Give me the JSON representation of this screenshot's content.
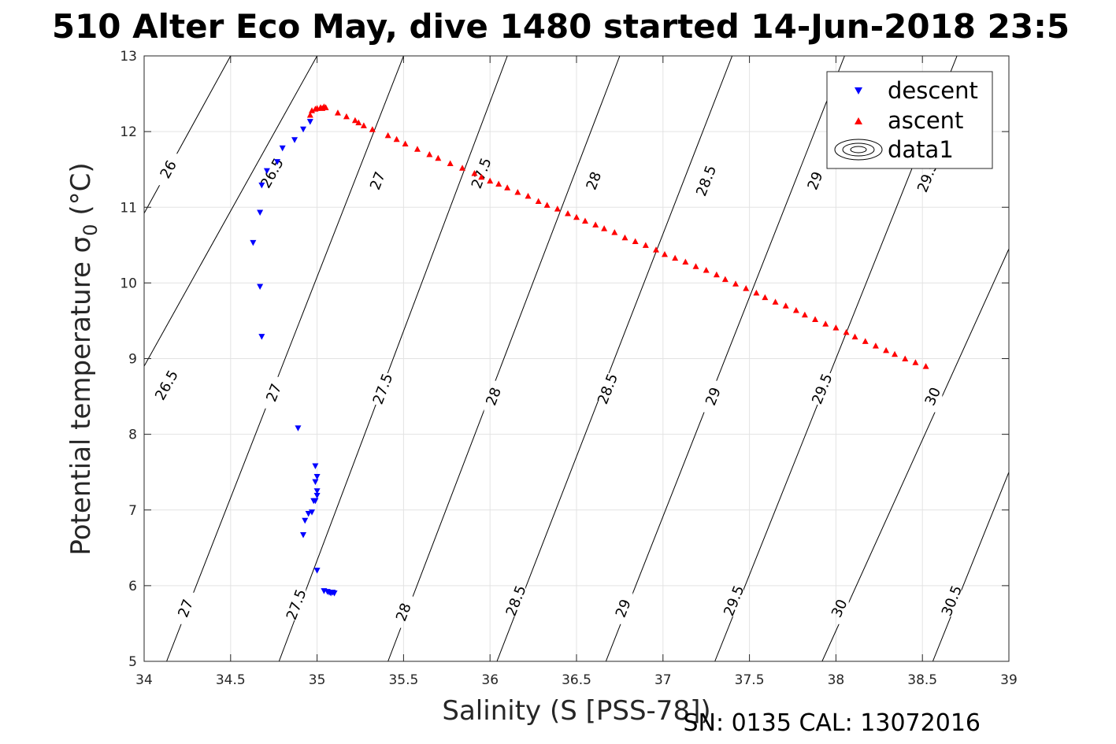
{
  "chart_data": {
    "type": "scatter",
    "title": "510 Alter Eco May, dive 1480 started 14-Jun-2018 23:5",
    "xlabel": "Salinity (S [PSS-78])",
    "ylabel": "Potential temperature σ",
    "ylabel_sub": "0",
    "ylabel_unit": " (°C)",
    "caption": "SN: 0135  CAL: 13072016",
    "xlim": [
      34,
      39
    ],
    "ylim": [
      5,
      13
    ],
    "xticks": [
      34,
      34.5,
      35,
      35.5,
      36,
      36.5,
      37,
      37.5,
      38,
      38.5,
      39
    ],
    "yticks": [
      5,
      6,
      7,
      8,
      9,
      10,
      11,
      12,
      13
    ],
    "xtick_labels": [
      "34",
      "34.5",
      "35",
      "35.5",
      "36",
      "36.5",
      "37",
      "37.5",
      "38",
      "38.5",
      "39"
    ],
    "ytick_labels": [
      "5",
      "6",
      "7",
      "8",
      "9",
      "10",
      "11",
      "12",
      "13"
    ],
    "grid": true,
    "legend_position": "top-right",
    "series": [
      {
        "name": "descent",
        "marker": "triangle-down",
        "color": "#0000ff",
        "points": [
          [
            34.63,
            10.53
          ],
          [
            34.67,
            9.95
          ],
          [
            34.68,
            9.29
          ],
          [
            34.67,
            10.93
          ],
          [
            34.68,
            11.29
          ],
          [
            34.71,
            11.48
          ],
          [
            34.77,
            11.6
          ],
          [
            34.8,
            11.78
          ],
          [
            34.87,
            11.89
          ],
          [
            34.92,
            12.03
          ],
          [
            34.96,
            12.13
          ],
          [
            34.89,
            8.08
          ],
          [
            34.99,
            7.58
          ],
          [
            35.0,
            7.44
          ],
          [
            34.99,
            7.37
          ],
          [
            35.0,
            7.25
          ],
          [
            35.0,
            7.19
          ],
          [
            34.99,
            7.12
          ],
          [
            34.98,
            7.12
          ],
          [
            34.97,
            6.97
          ],
          [
            34.95,
            6.95
          ],
          [
            34.93,
            6.86
          ],
          [
            34.92,
            6.67
          ],
          [
            35.0,
            6.2
          ],
          [
            35.04,
            5.93
          ],
          [
            35.06,
            5.92
          ],
          [
            35.07,
            5.91
          ],
          [
            35.08,
            5.9
          ],
          [
            35.09,
            5.91
          ],
          [
            35.1,
            5.9
          ]
        ]
      },
      {
        "name": "ascent",
        "marker": "triangle-up",
        "color": "#ff0000",
        "points": [
          [
            34.96,
            12.22
          ],
          [
            34.97,
            12.28
          ],
          [
            34.99,
            12.3
          ],
          [
            35.0,
            12.31
          ],
          [
            35.02,
            12.32
          ],
          [
            35.03,
            12.31
          ],
          [
            35.04,
            12.33
          ],
          [
            35.05,
            12.32
          ],
          [
            35.12,
            12.25
          ],
          [
            35.17,
            12.2
          ],
          [
            35.22,
            12.15
          ],
          [
            35.24,
            12.12
          ],
          [
            35.27,
            12.08
          ],
          [
            35.32,
            12.03
          ],
          [
            35.41,
            11.95
          ],
          [
            35.46,
            11.9
          ],
          [
            35.51,
            11.84
          ],
          [
            35.58,
            11.77
          ],
          [
            35.65,
            11.7
          ],
          [
            35.7,
            11.65
          ],
          [
            35.77,
            11.58
          ],
          [
            35.84,
            11.52
          ],
          [
            35.91,
            11.45
          ],
          [
            35.95,
            11.4
          ],
          [
            36.0,
            11.35
          ],
          [
            36.05,
            11.31
          ],
          [
            36.1,
            11.26
          ],
          [
            36.16,
            11.2
          ],
          [
            36.22,
            11.15
          ],
          [
            36.28,
            11.08
          ],
          [
            36.33,
            11.03
          ],
          [
            36.39,
            10.98
          ],
          [
            36.45,
            10.92
          ],
          [
            36.5,
            10.87
          ],
          [
            36.55,
            10.82
          ],
          [
            36.61,
            10.77
          ],
          [
            36.66,
            10.72
          ],
          [
            36.72,
            10.67
          ],
          [
            36.78,
            10.6
          ],
          [
            36.84,
            10.55
          ],
          [
            36.9,
            10.5
          ],
          [
            36.96,
            10.44
          ],
          [
            37.01,
            10.38
          ],
          [
            37.07,
            10.33
          ],
          [
            37.13,
            10.28
          ],
          [
            37.19,
            10.22
          ],
          [
            37.25,
            10.17
          ],
          [
            37.31,
            10.11
          ],
          [
            37.36,
            10.05
          ],
          [
            37.42,
            9.99
          ],
          [
            37.48,
            9.93
          ],
          [
            37.54,
            9.87
          ],
          [
            37.59,
            9.81
          ],
          [
            37.65,
            9.75
          ],
          [
            37.71,
            9.7
          ],
          [
            37.77,
            9.64
          ],
          [
            37.82,
            9.58
          ],
          [
            37.88,
            9.52
          ],
          [
            37.94,
            9.46
          ],
          [
            38.0,
            9.41
          ],
          [
            38.06,
            9.35
          ],
          [
            38.11,
            9.29
          ],
          [
            38.17,
            9.23
          ],
          [
            38.23,
            9.17
          ],
          [
            38.29,
            9.11
          ],
          [
            38.34,
            9.06
          ],
          [
            38.4,
            9.0
          ],
          [
            38.46,
            8.95
          ],
          [
            38.52,
            8.9
          ]
        ]
      }
    ],
    "contours": {
      "name": "data1",
      "levels": [
        {
          "level": "26",
          "line": [
            [
              34.0,
              10.92
            ],
            [
              34.5,
              13.0
            ]
          ],
          "labels": [
            [
              34.14,
              11.5
            ]
          ]
        },
        {
          "level": "26.5",
          "line": [
            [
              34.0,
              8.9
            ],
            [
              35.0,
              13.0
            ]
          ],
          "labels": [
            [
              34.13,
              8.65
            ],
            [
              34.74,
              11.45
            ]
          ]
        },
        {
          "level": "27",
          "line": [
            [
              34.13,
              5.0
            ],
            [
              35.5,
              13.0
            ]
          ],
          "labels": [
            [
              34.24,
              5.7
            ],
            [
              34.75,
              8.55
            ],
            [
              35.35,
              11.35
            ]
          ]
        },
        {
          "level": "27.5",
          "line": [
            [
              34.78,
              5.0
            ],
            [
              36.1,
              13.0
            ]
          ],
          "labels": [
            [
              34.88,
              5.75
            ],
            [
              35.38,
              8.6
            ],
            [
              35.95,
              11.45
            ]
          ]
        },
        {
          "level": "28",
          "line": [
            [
              35.41,
              5.0
            ],
            [
              36.75,
              13.0
            ]
          ],
          "labels": [
            [
              35.5,
              5.65
            ],
            [
              36.02,
              8.5
            ],
            [
              36.6,
              11.35
            ]
          ]
        },
        {
          "level": "28.5",
          "line": [
            [
              36.04,
              5.0
            ],
            [
              37.4,
              13.0
            ]
          ],
          "labels": [
            [
              36.15,
              5.8
            ],
            [
              36.68,
              8.6
            ],
            [
              37.25,
              11.35
            ]
          ]
        },
        {
          "level": "29",
          "line": [
            [
              36.67,
              5.0
            ],
            [
              38.05,
              13.0
            ]
          ],
          "labels": [
            [
              36.77,
              5.7
            ],
            [
              37.29,
              8.5
            ],
            [
              37.88,
              11.35
            ]
          ]
        },
        {
          "level": "29.5",
          "line": [
            [
              37.3,
              5.0
            ],
            [
              38.7,
              13.0
            ]
          ],
          "labels": [
            [
              37.41,
              5.8
            ],
            [
              37.92,
              8.6
            ],
            [
              38.53,
              11.4
            ]
          ]
        },
        {
          "level": "30",
          "line": [
            [
              37.92,
              5.0
            ],
            [
              39.0,
              10.45
            ]
          ],
          "labels": [
            [
              38.02,
              5.7
            ],
            [
              38.56,
              8.5
            ]
          ]
        },
        {
          "level": "30.5",
          "line": [
            [
              38.56,
              5.0
            ],
            [
              39.0,
              7.5
            ]
          ],
          "labels": [
            [
              38.67,
              5.8
            ]
          ]
        }
      ]
    }
  }
}
